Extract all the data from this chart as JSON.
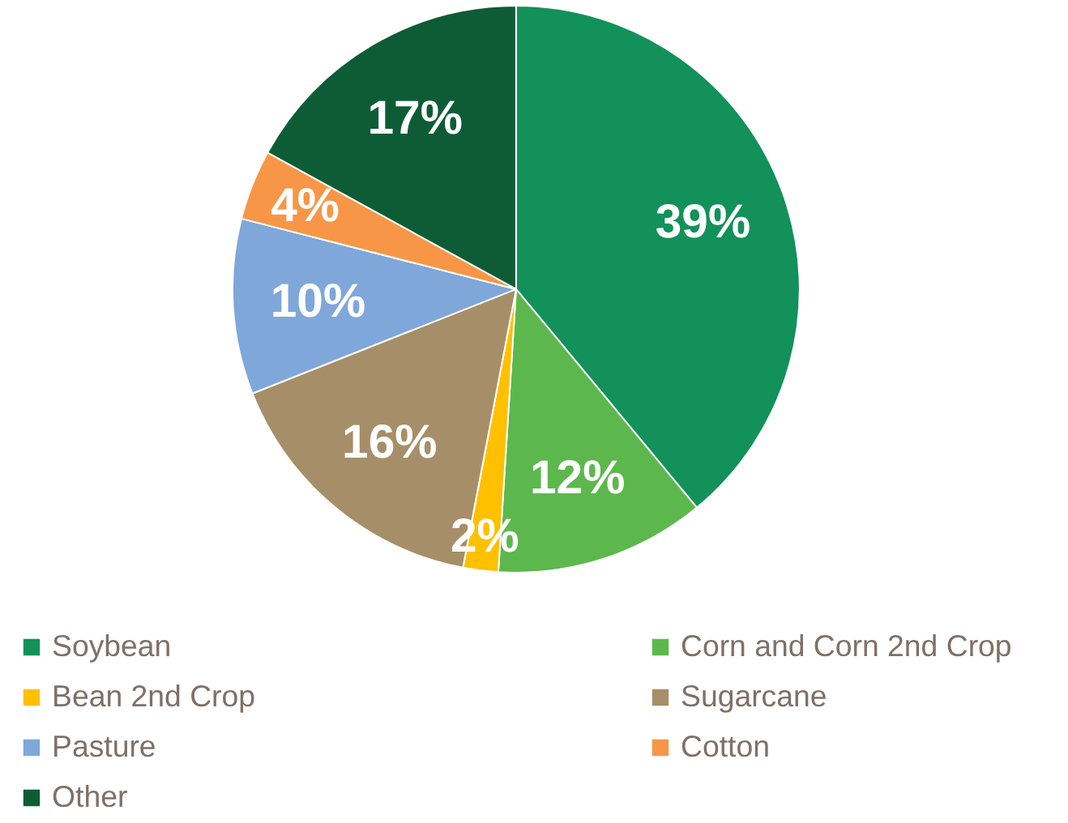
{
  "chart_data": {
    "type": "pie",
    "categories": [
      "Soybean",
      "Corn and Corn 2nd Crop",
      "Bean 2nd Crop",
      "Sugarcane",
      "Pasture",
      "Cotton",
      "Other"
    ],
    "values": [
      39,
      12,
      2,
      16,
      10,
      4,
      17
    ],
    "colors": [
      "#13915a",
      "#5cb84c",
      "#ffc000",
      "#a68f68",
      "#7fa7d9",
      "#f79646",
      "#0e5c36"
    ],
    "value_labels": [
      "39%",
      "12%",
      "2%",
      "16%",
      "10%",
      "4%",
      "17%"
    ],
    "legend": "bottom"
  }
}
